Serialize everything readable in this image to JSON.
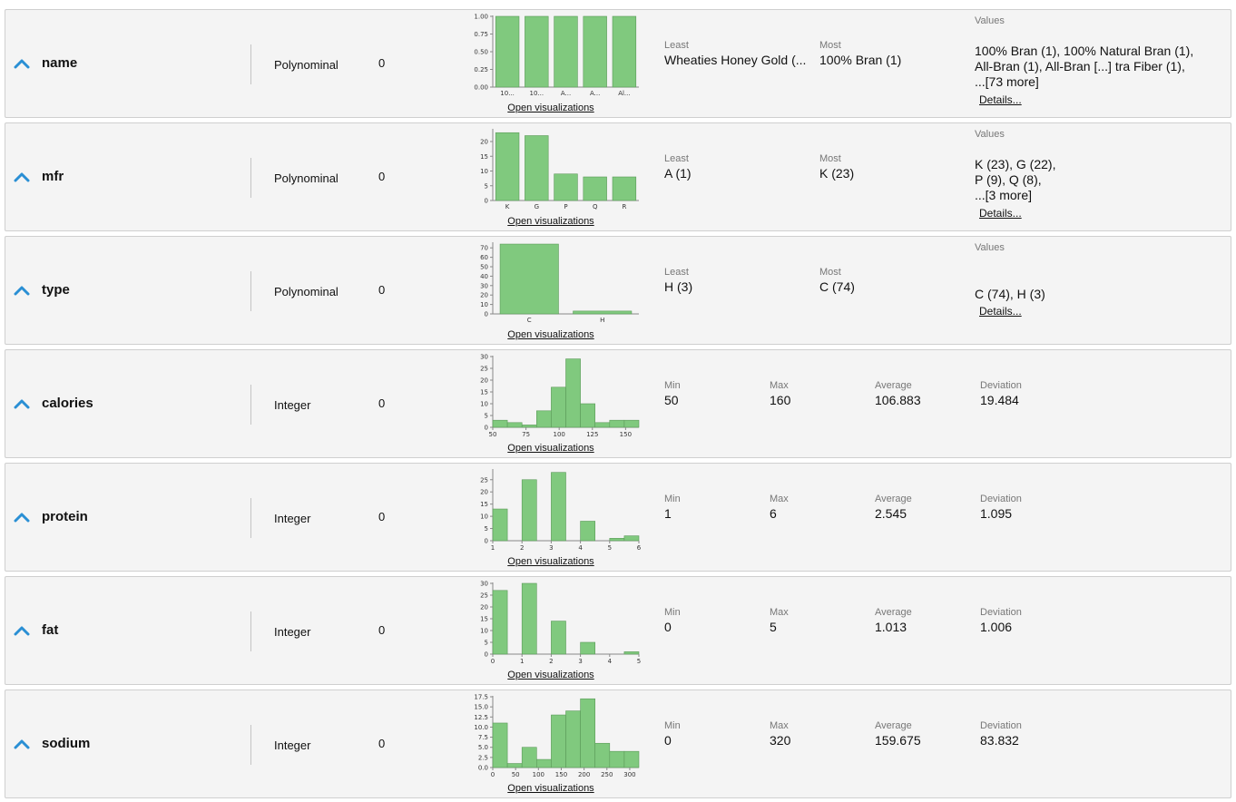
{
  "colors": {
    "bar_fill": "#80c97e",
    "bar_stroke": "#5b9a59",
    "chevron": "#2a8fd4"
  },
  "labels": {
    "least": "Least",
    "most": "Most",
    "values": "Values",
    "min": "Min",
    "max": "Max",
    "average": "Average",
    "deviation": "Deviation",
    "open_viz": "Open visualizations",
    "details": "Details..."
  },
  "rows": [
    {
      "name": "name",
      "type": "Polynominal",
      "missing": "0",
      "least": "Wheaties Honey Gold (...",
      "most": "100% Bran (1)",
      "values_lines": [
        "100% Bran (1), 100% Natural Bran (1),",
        "All-Bran (1), All-Bran [...] tra Fiber (1),",
        "...[73 more]"
      ],
      "chart_data": {
        "type": "bar",
        "categories": [
          "10...",
          "10...",
          "A...",
          "A...",
          "Al..."
        ],
        "values": [
          1,
          1,
          1,
          1,
          1
        ],
        "yticks": [
          "0.00",
          "0.25",
          "0.50",
          "0.75",
          "1.00"
        ],
        "ylim": [
          0,
          1
        ]
      }
    },
    {
      "name": "mfr",
      "type": "Polynominal",
      "missing": "0",
      "least": "A (1)",
      "most": "K (23)",
      "values_lines": [
        "K (23), G (22),",
        "P (9), Q (8),",
        "...[3 more]"
      ],
      "chart_data": {
        "type": "bar",
        "categories": [
          "K",
          "G",
          "P",
          "Q",
          "R"
        ],
        "values": [
          23,
          22,
          9,
          8,
          8
        ],
        "yticks": [
          "0",
          "5",
          "10",
          "15",
          "20"
        ],
        "ylim": [
          0,
          24
        ]
      }
    },
    {
      "name": "type",
      "type": "Polynominal",
      "missing": "0",
      "least": "H (3)",
      "most": "C (74)",
      "values_lines": [
        "C (74), H (3)"
      ],
      "chart_data": {
        "type": "bar",
        "categories": [
          "C",
          "H"
        ],
        "values": [
          74,
          3
        ],
        "yticks": [
          "0",
          "10",
          "20",
          "30",
          "40",
          "50",
          "60",
          "70"
        ],
        "ylim": [
          0,
          75
        ]
      }
    },
    {
      "name": "calories",
      "type": "Integer",
      "missing": "0",
      "min": "50",
      "max": "160",
      "average": "106.883",
      "deviation": "19.484",
      "chart_data": {
        "type": "histogram",
        "bin_edges": [
          50,
          61,
          72,
          83,
          94,
          105,
          116,
          127,
          138,
          149,
          160
        ],
        "values": [
          3,
          2,
          1,
          7,
          17,
          29,
          10,
          2,
          3,
          3
        ],
        "xticks": [
          "50",
          "75",
          "100",
          "125",
          "150"
        ],
        "yticks": [
          "0",
          "5",
          "10",
          "15",
          "20",
          "25",
          "30"
        ],
        "xlim": [
          50,
          160
        ],
        "ylim": [
          0,
          30
        ]
      }
    },
    {
      "name": "protein",
      "type": "Integer",
      "missing": "0",
      "min": "1",
      "max": "6",
      "average": "2.545",
      "deviation": "1.095",
      "chart_data": {
        "type": "histogram",
        "bin_edges": [
          1,
          1.5,
          2,
          2.5,
          3,
          3.5,
          4,
          4.5,
          5,
          5.5,
          6
        ],
        "values": [
          13,
          0,
          25,
          0,
          28,
          0,
          8,
          0,
          1,
          2
        ],
        "xticks": [
          "1",
          "2",
          "3",
          "4",
          "5",
          "6"
        ],
        "yticks": [
          "0",
          "5",
          "10",
          "15",
          "20",
          "25"
        ],
        "xlim": [
          1,
          6
        ],
        "ylim": [
          0,
          29
        ]
      }
    },
    {
      "name": "fat",
      "type": "Integer",
      "missing": "0",
      "min": "0",
      "max": "5",
      "average": "1.013",
      "deviation": "1.006",
      "chart_data": {
        "type": "histogram",
        "bin_edges": [
          0,
          0.5,
          1,
          1.5,
          2,
          2.5,
          3,
          3.5,
          4,
          4.5,
          5
        ],
        "values": [
          27,
          0,
          30,
          0,
          14,
          0,
          5,
          0,
          0,
          1
        ],
        "xticks": [
          "0",
          "1",
          "2",
          "3",
          "4",
          "5"
        ],
        "yticks": [
          "0",
          "5",
          "10",
          "15",
          "20",
          "25",
          "30"
        ],
        "xlim": [
          0,
          5
        ],
        "ylim": [
          0,
          30
        ]
      }
    },
    {
      "name": "sodium",
      "type": "Integer",
      "missing": "0",
      "min": "0",
      "max": "320",
      "average": "159.675",
      "deviation": "83.832",
      "chart_data": {
        "type": "histogram",
        "bin_edges": [
          0,
          32,
          64,
          96,
          128,
          160,
          192,
          224,
          256,
          288,
          320
        ],
        "values": [
          11,
          1,
          5,
          2,
          13,
          14,
          17,
          6,
          4,
          4
        ],
        "xticks": [
          "0",
          "50",
          "100",
          "150",
          "200",
          "250",
          "300"
        ],
        "yticks": [
          "0.0",
          "2.5",
          "5.0",
          "7.5",
          "10.0",
          "12.5",
          "15.0",
          "17.5"
        ],
        "xlim": [
          0,
          320
        ],
        "ylim": [
          0,
          17.5
        ]
      }
    }
  ]
}
